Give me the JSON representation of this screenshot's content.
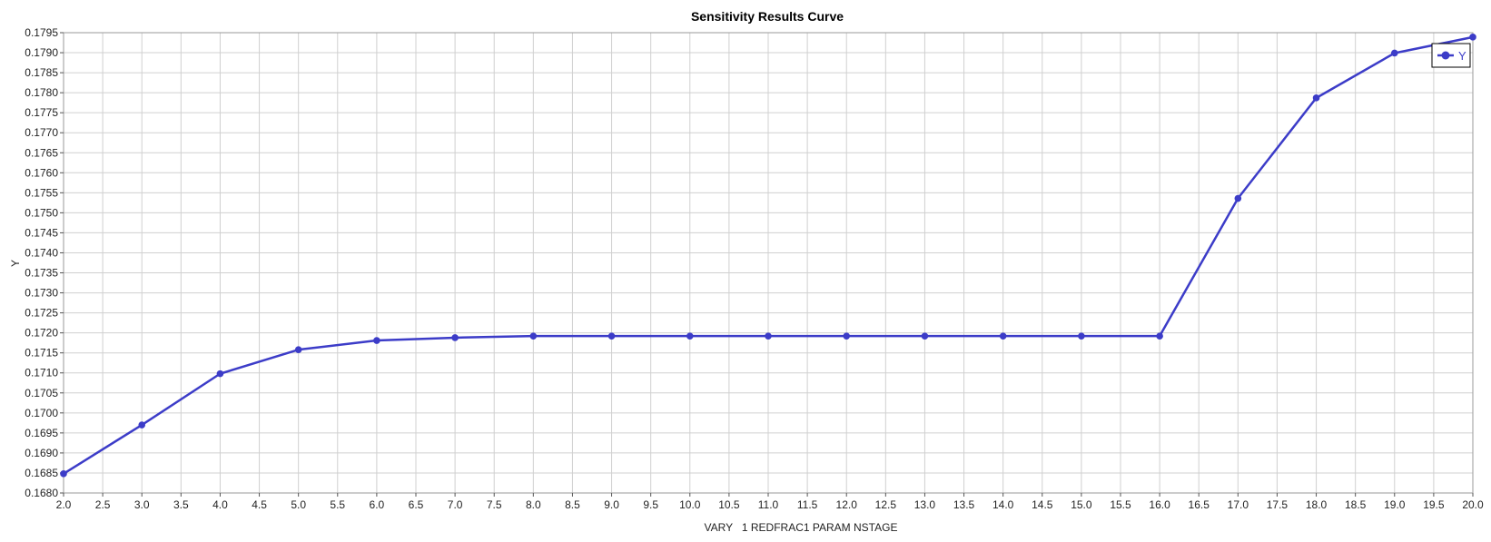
{
  "chart_data": {
    "type": "line",
    "title": "Sensitivity Results Curve",
    "xlabel": "VARY   1 REDFRAC1 PARAM NSTAGE",
    "ylabel": "Y",
    "xlim": [
      2.0,
      20.0
    ],
    "ylim": [
      0.168,
      0.1795
    ],
    "x_ticks": [
      "2.0",
      "2.5",
      "3.0",
      "3.5",
      "4.0",
      "4.5",
      "5.0",
      "5.5",
      "6.0",
      "6.5",
      "7.0",
      "7.5",
      "8.0",
      "8.5",
      "9.0",
      "9.5",
      "10.0",
      "10.5",
      "11.0",
      "11.5",
      "12.0",
      "12.5",
      "13.0",
      "13.5",
      "14.0",
      "14.5",
      "15.0",
      "15.5",
      "16.0",
      "16.5",
      "17.0",
      "17.5",
      "18.0",
      "18.5",
      "19.0",
      "19.5",
      "20.0"
    ],
    "y_ticks": [
      "0.1680",
      "0.1685",
      "0.1690",
      "0.1695",
      "0.1700",
      "0.1705",
      "0.1710",
      "0.1715",
      "0.1720",
      "0.1725",
      "0.1730",
      "0.1735",
      "0.1740",
      "0.1745",
      "0.1750",
      "0.1755",
      "0.1760",
      "0.1765",
      "0.1770",
      "0.1775",
      "0.1780",
      "0.1785",
      "0.1790",
      "0.1795"
    ],
    "grid": true,
    "legend_position": "top-right",
    "series": [
      {
        "name": "Y",
        "color": "#3c3cc8",
        "x": [
          2,
          3,
          4,
          5,
          6,
          7,
          8,
          9,
          10,
          11,
          12,
          13,
          14,
          15,
          16,
          17,
          18,
          19,
          20
        ],
        "values": [
          0.16848,
          0.1697,
          0.17098,
          0.17158,
          0.17181,
          0.17188,
          0.17192,
          0.17192,
          0.17192,
          0.17192,
          0.17192,
          0.17192,
          0.17192,
          0.17192,
          0.17192,
          0.17536,
          0.17787,
          0.17899,
          0.17939
        ]
      }
    ]
  }
}
